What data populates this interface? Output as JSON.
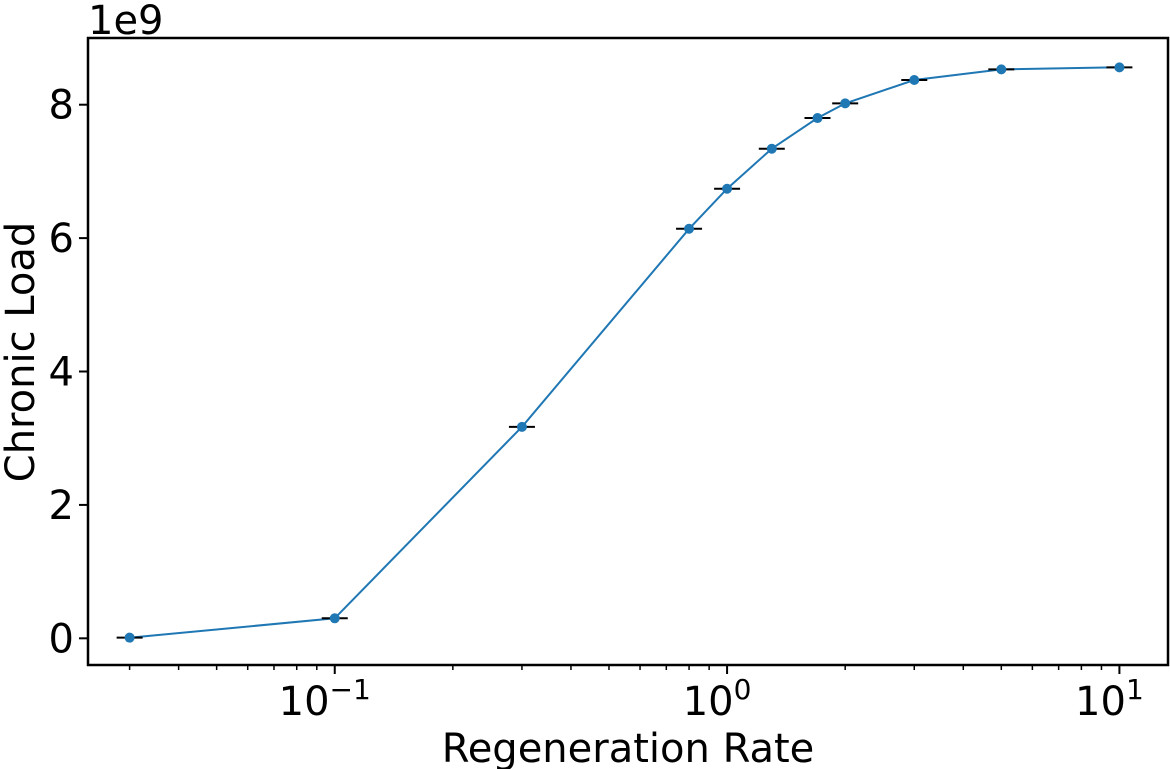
{
  "chart_data": {
    "type": "line",
    "title": "",
    "xlabel": "Regeneration Rate",
    "ylabel": "Chronic Load",
    "x_scale": "log",
    "y_offset_label": "1e9",
    "y_multiplier": 1000000000,
    "xlim": [
      0.0235,
      13.3
    ],
    "ylim": [
      -0.4,
      9.0
    ],
    "x_major_ticks": [
      {
        "value": 0.1,
        "base": "10",
        "exp": "−1"
      },
      {
        "value": 1,
        "base": "10",
        "exp": "0"
      },
      {
        "value": 10,
        "base": "10",
        "exp": "1"
      }
    ],
    "y_ticks": [
      {
        "value": 0,
        "label": "0"
      },
      {
        "value": 2,
        "label": "2"
      },
      {
        "value": 4,
        "label": "4"
      },
      {
        "value": 6,
        "label": "6"
      },
      {
        "value": 8,
        "label": "8"
      }
    ],
    "series": [
      {
        "name": "Chronic Load",
        "color": "#1f77b4",
        "error_color": "#000000",
        "x": [
          0.03,
          0.1,
          0.3,
          0.8,
          1.0,
          1.3,
          1.7,
          2.0,
          3.0,
          5.0,
          10.0
        ],
        "y": [
          0.01,
          0.3,
          3.17,
          6.14,
          6.74,
          7.34,
          7.8,
          8.02,
          8.37,
          8.53,
          8.56
        ]
      }
    ]
  }
}
